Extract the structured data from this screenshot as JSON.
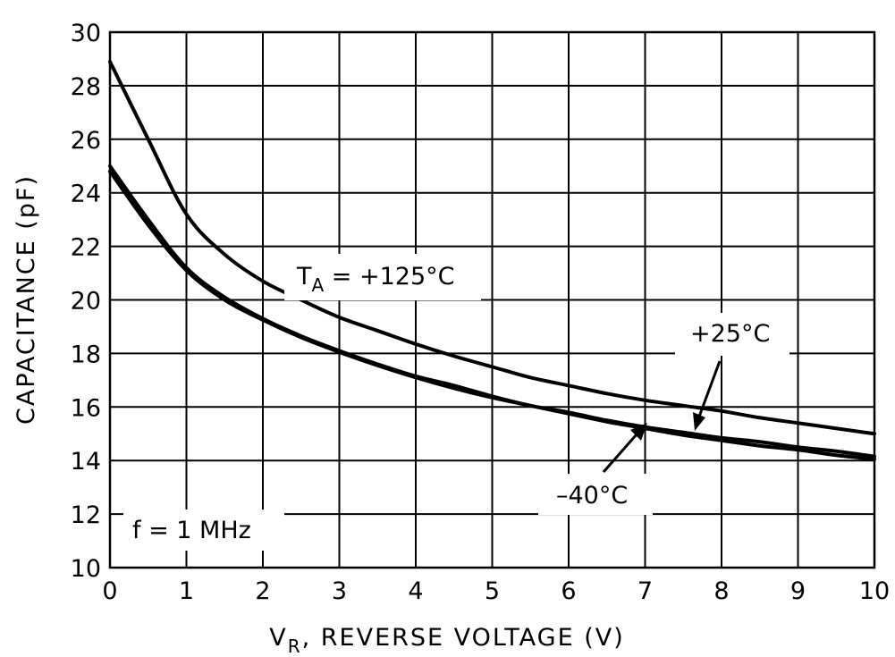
{
  "chart_data": {
    "type": "line",
    "title": "",
    "xlabel": "V",
    "xlabel_sub": "R",
    "xlabel_rest": ", REVERSE VOLTAGE (V)",
    "ylabel": "CAPACITANCE (pF)",
    "xlim": [
      0,
      10
    ],
    "ylim": [
      10,
      30
    ],
    "grid": true,
    "x_ticks": [
      "0",
      "1",
      "2",
      "3",
      "4",
      "5",
      "6",
      "7",
      "8",
      "9",
      "10"
    ],
    "y_ticks": [
      "10",
      "12",
      "14",
      "16",
      "18",
      "20",
      "22",
      "24",
      "26",
      "28",
      "30"
    ],
    "x": [
      0,
      0.5,
      1,
      1.5,
      2,
      2.5,
      3,
      3.5,
      4,
      4.5,
      5,
      5.5,
      6,
      6.5,
      7,
      7.5,
      8,
      8.5,
      9,
      9.5,
      10
    ],
    "series": [
      {
        "name": "TA = +125°C",
        "values": [
          28.9,
          26.0,
          23.2,
          21.7,
          20.7,
          20.0,
          19.35,
          18.85,
          18.35,
          17.9,
          17.5,
          17.1,
          16.8,
          16.5,
          16.25,
          16.05,
          15.85,
          15.6,
          15.4,
          15.2,
          15.0
        ]
      },
      {
        "name": "+25°C",
        "values": [
          25.0,
          23.0,
          21.2,
          20.1,
          19.3,
          18.65,
          18.1,
          17.6,
          17.15,
          16.8,
          16.4,
          16.05,
          15.8,
          15.5,
          15.25,
          15.05,
          14.85,
          14.7,
          14.5,
          14.35,
          14.15
        ]
      },
      {
        "name": "-40°C",
        "values": [
          24.8,
          22.8,
          21.1,
          20.0,
          19.25,
          18.6,
          18.05,
          17.55,
          17.1,
          16.7,
          16.35,
          16.05,
          15.75,
          15.45,
          15.2,
          14.95,
          14.75,
          14.55,
          14.4,
          14.2,
          14.05
        ]
      }
    ],
    "annotations": {
      "ta_prefix": "T",
      "ta_sub": "A",
      "ta_rest": " = +125°C",
      "plus25": "+25°C",
      "minus40": "–40°C",
      "freq": "f = 1 MHz"
    }
  }
}
